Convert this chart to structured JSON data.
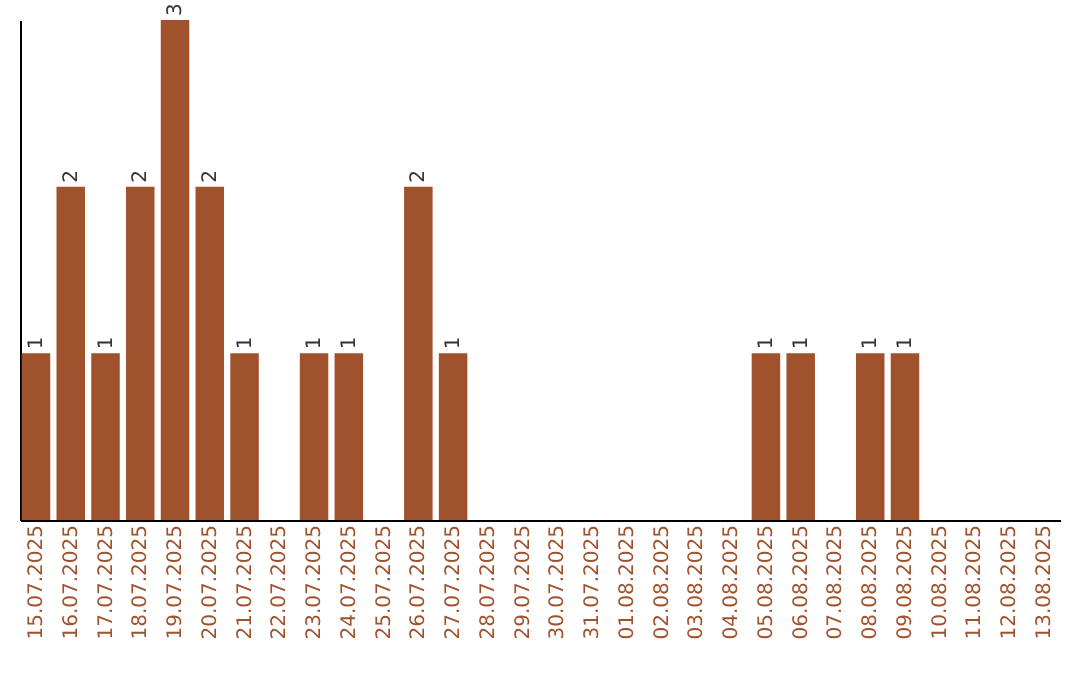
{
  "chart_data": {
    "type": "bar",
    "categories": [
      "15.07.2025",
      "16.07.2025",
      "17.07.2025",
      "18.07.2025",
      "19.07.2025",
      "20.07.2025",
      "21.07.2025",
      "22.07.2025",
      "23.07.2025",
      "24.07.2025",
      "25.07.2025",
      "26.07.2025",
      "27.07.2025",
      "28.07.2025",
      "29.07.2025",
      "30.07.2025",
      "31.07.2025",
      "01.08.2025",
      "02.08.2025",
      "03.08.2025",
      "04.08.2025",
      "05.08.2025",
      "06.08.2025",
      "07.08.2025",
      "08.08.2025",
      "09.08.2025",
      "10.08.2025",
      "11.08.2025",
      "12.08.2025",
      "13.08.2025"
    ],
    "values": [
      1,
      2,
      1,
      2,
      3,
      2,
      1,
      0,
      1,
      1,
      0,
      2,
      1,
      0,
      0,
      0,
      0,
      0,
      0,
      0,
      0,
      1,
      1,
      0,
      1,
      1,
      0,
      0,
      0,
      0
    ],
    "value_labels": [
      "1",
      "2",
      "1",
      "2",
      "3",
      "2",
      "1",
      null,
      "1",
      "1",
      null,
      "2",
      "1",
      null,
      null,
      null,
      null,
      null,
      null,
      null,
      null,
      "1",
      "1",
      null,
      "1",
      "1",
      null,
      null,
      null,
      null
    ],
    "color": "#a0522d",
    "grid": false,
    "tick_labels": "x"
  }
}
